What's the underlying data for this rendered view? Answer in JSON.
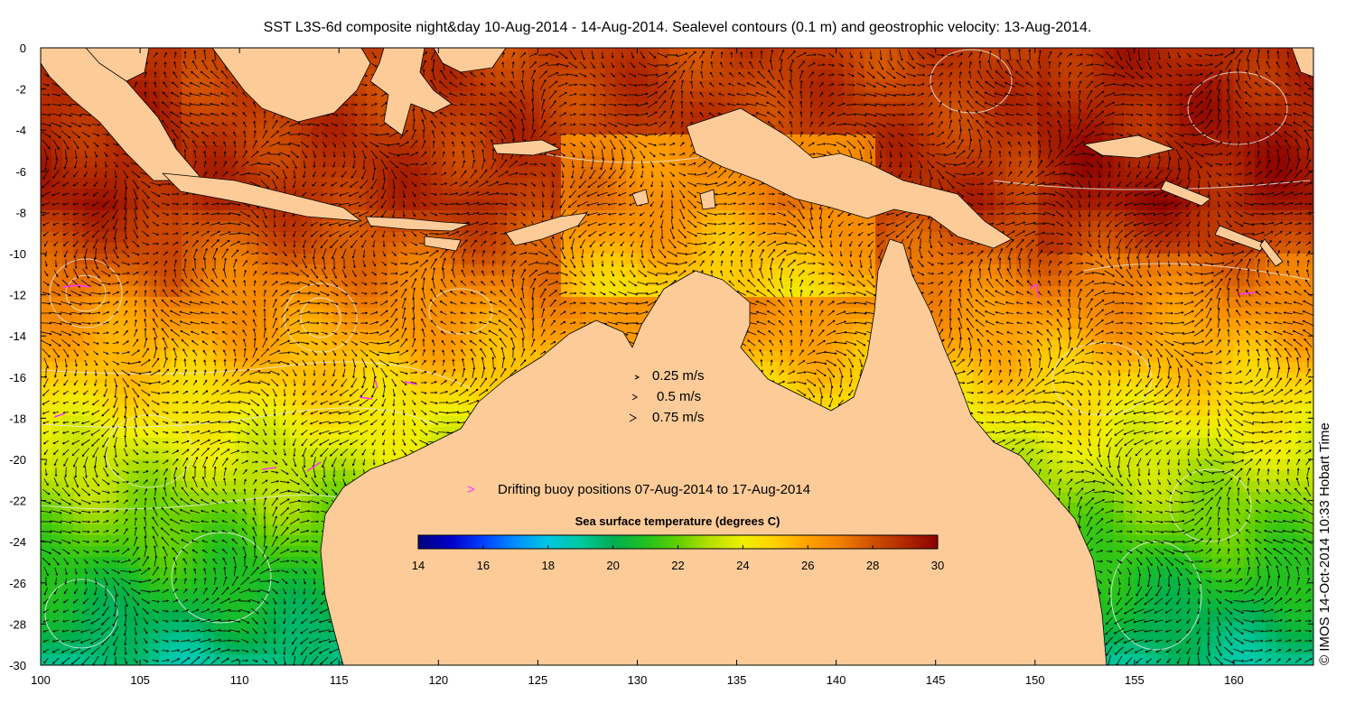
{
  "title": "SST L3S-6d composite night&day 10-Aug-2014 - 14-Aug-2014. Sealevel contours (0.1 m) and geostrophic velocity: 13-Aug-2014.",
  "credit": "© IMOS 14-Oct-2014 10:33 Hobart Time",
  "axes": {
    "x_ticks": [
      "100",
      "105",
      "110",
      "115",
      "120",
      "125",
      "130",
      "135",
      "140",
      "145",
      "150",
      "155",
      "160"
    ],
    "y_ticks": [
      "0",
      "-2",
      "-4",
      "-6",
      "-8",
      "-10",
      "-12",
      "-14",
      "-16",
      "-18",
      "-20",
      "-22",
      "-24",
      "-26",
      "-28",
      "-30"
    ],
    "lon_range": [
      100,
      164
    ],
    "lat_range": [
      -30,
      0
    ]
  },
  "velocity_legend": {
    "items": [
      {
        "label": "0.25 m/s",
        "speed": 0.25
      },
      {
        "label": "0.5 m/s",
        "speed": 0.5
      },
      {
        "label": "0.75 m/s",
        "speed": 0.75
      }
    ]
  },
  "buoy_legend": {
    "symbol": ">",
    "label": "Drifting buoy positions 07-Aug-2014 to 17-Aug-2014",
    "color": "#ff33ff"
  },
  "colorbar": {
    "title": "Sea surface temperature (degrees C)",
    "min": 14,
    "max": 30,
    "tick_labels": [
      "14",
      "16",
      "18",
      "20",
      "22",
      "24",
      "26",
      "28",
      "30"
    ],
    "colors": [
      "#00007f",
      "#0000c8",
      "#0040ff",
      "#0090ff",
      "#00c8e0",
      "#00c8a0",
      "#00b050",
      "#20c020",
      "#60d000",
      "#b8e000",
      "#f0f000",
      "#ffd000",
      "#ffa000",
      "#f08000",
      "#d05000",
      "#b02800",
      "#8b0000"
    ]
  },
  "colors": {
    "land": "#fccb98",
    "contour": "#e8e8e8",
    "coast": "#000000"
  }
}
